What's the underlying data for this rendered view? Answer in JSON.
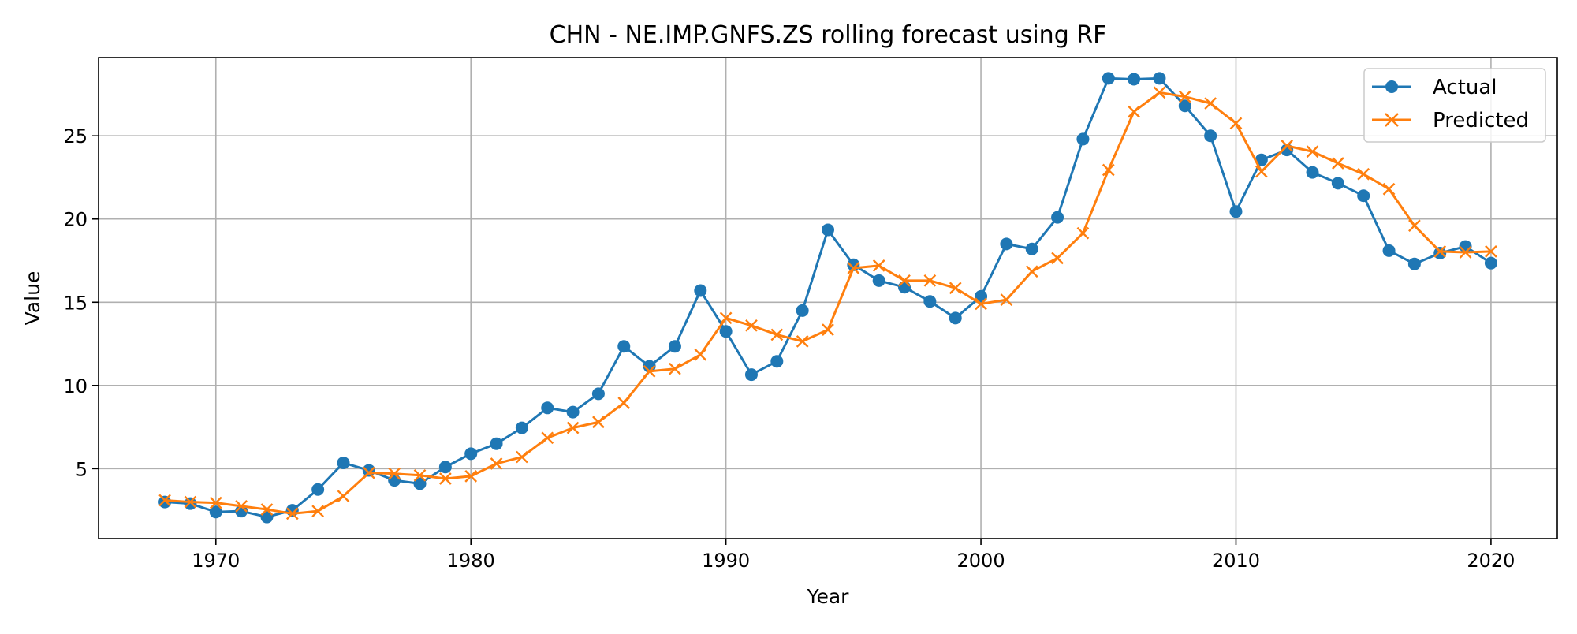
{
  "chart_data": {
    "type": "line",
    "title": "CHN - NE.IMP.GNFS.ZS rolling forecast using RF",
    "xlabel": "Year",
    "ylabel": "Value",
    "xlim": [
      1965.4,
      2022.6
    ],
    "ylim": [
      0.8,
      29.7
    ],
    "xticks": [
      1970,
      1980,
      1990,
      2000,
      2010,
      2020
    ],
    "yticks": [
      5,
      10,
      15,
      20,
      25
    ],
    "grid": true,
    "legend_position": "top-right",
    "x": [
      1968,
      1969,
      1970,
      1971,
      1972,
      1973,
      1974,
      1975,
      1976,
      1977,
      1978,
      1979,
      1980,
      1981,
      1982,
      1983,
      1984,
      1985,
      1986,
      1987,
      1988,
      1989,
      1990,
      1991,
      1992,
      1993,
      1994,
      1995,
      1996,
      1997,
      1998,
      1999,
      2000,
      2001,
      2002,
      2003,
      2004,
      2005,
      2006,
      2007,
      2008,
      2009,
      2010,
      2011,
      2012,
      2013,
      2014,
      2015,
      2016,
      2017,
      2018,
      2019,
      2020
    ],
    "series": [
      {
        "name": "Actual",
        "color": "#1f77b4",
        "marker": "circle",
        "values": [
          3.0,
          2.9,
          2.4,
          2.45,
          2.1,
          2.5,
          3.75,
          5.35,
          4.9,
          4.3,
          4.1,
          5.1,
          5.9,
          6.5,
          7.45,
          8.65,
          8.4,
          9.5,
          12.35,
          11.15,
          12.35,
          15.7,
          13.25,
          10.65,
          11.45,
          14.5,
          19.35,
          17.25,
          16.3,
          15.9,
          15.05,
          14.05,
          15.35,
          18.5,
          18.2,
          20.1,
          24.8,
          28.45,
          28.4,
          28.45,
          26.8,
          25.0,
          20.45,
          23.55,
          24.15,
          22.8,
          22.15,
          21.4,
          18.1,
          17.3,
          17.95,
          18.35,
          17.35
        ]
      },
      {
        "name": "Predicted",
        "color": "#ff7f0e",
        "marker": "x",
        "values": [
          3.1,
          3.0,
          2.95,
          2.75,
          2.55,
          2.3,
          2.45,
          3.35,
          4.75,
          4.7,
          4.6,
          4.4,
          4.55,
          5.3,
          5.7,
          6.85,
          7.45,
          7.8,
          8.95,
          10.85,
          11.0,
          11.85,
          14.05,
          13.6,
          13.05,
          12.65,
          13.35,
          17.05,
          17.2,
          16.3,
          16.3,
          15.85,
          14.9,
          15.15,
          16.85,
          17.65,
          19.15,
          22.95,
          26.45,
          27.6,
          27.35,
          26.95,
          25.75,
          22.85,
          24.4,
          24.05,
          23.35,
          22.7,
          21.8,
          19.6,
          18.05,
          18.0,
          18.05
        ]
      }
    ]
  }
}
